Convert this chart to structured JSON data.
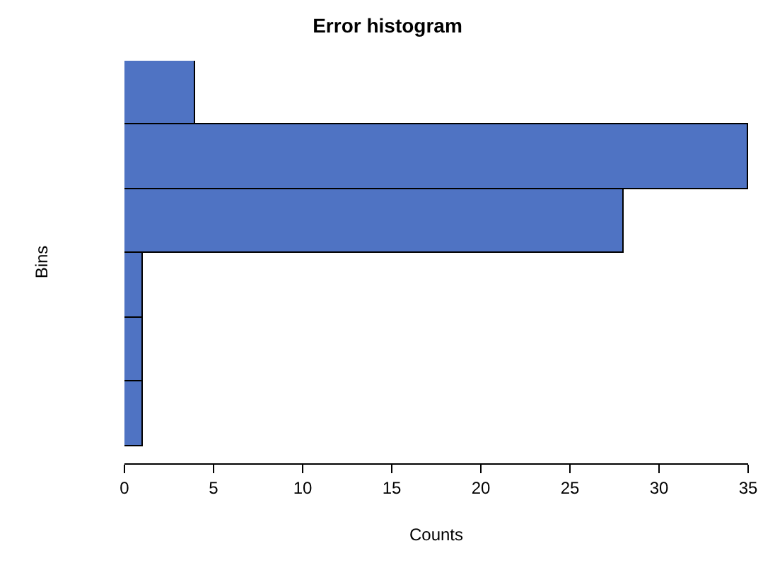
{
  "chart_data": {
    "type": "bar",
    "orientation": "horizontal",
    "title": "Error histogram",
    "xlabel": "Counts",
    "ylabel": "Bins",
    "categories": [
      null,
      null,
      null,
      null,
      null,
      null
    ],
    "values": [
      4,
      35,
      28,
      1,
      1,
      1
    ],
    "color": "#4f73c3",
    "xlim": [
      0,
      35
    ],
    "xticks": [
      0,
      5,
      10,
      15,
      20,
      25,
      30,
      35
    ],
    "tick_labels": "x",
    "legend": false
  }
}
